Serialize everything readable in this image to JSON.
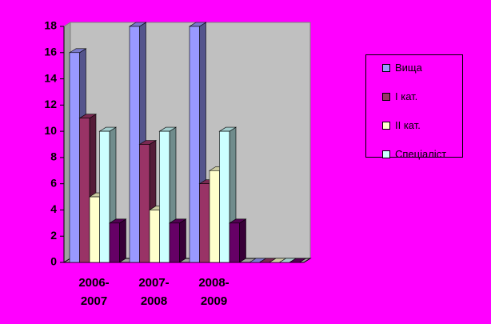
{
  "chart_data": {
    "type": "bar3d",
    "categories": [
      "2006-\n2007",
      "2007-\n2008",
      "2008-\n2009",
      null
    ],
    "series": [
      {
        "name": "Вища",
        "color": "#9999ff",
        "values": [
          16,
          18,
          18,
          0
        ]
      },
      {
        "name": "І кат.",
        "color": "#993366",
        "values": [
          11,
          9,
          6,
          0
        ]
      },
      {
        "name": "ІІ кат.",
        "color": "#ffffcc",
        "values": [
          5,
          4,
          7,
          0
        ]
      },
      {
        "name": "Спеціаліст",
        "color": "#ccffff",
        "values": [
          10,
          10,
          10,
          0
        ]
      },
      {
        "color": "#660066",
        "values": [
          3,
          3,
          3,
          0
        ]
      }
    ],
    "ylim": [
      0,
      18
    ],
    "yticks": [
      0,
      2,
      4,
      6,
      8,
      10,
      12,
      14,
      16,
      18
    ],
    "grid": false,
    "legend": "right"
  }
}
